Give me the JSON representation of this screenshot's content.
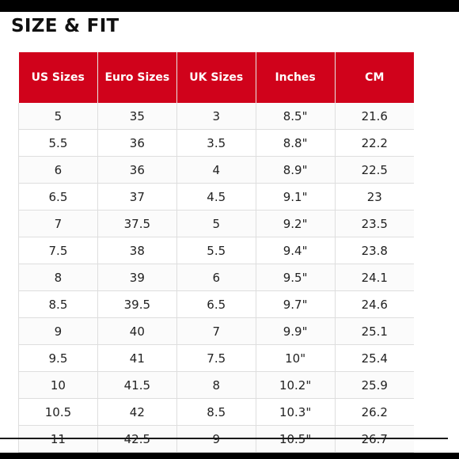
{
  "title": "SIZE & FIT",
  "table": {
    "headers": [
      "US Sizes",
      "Euro Sizes",
      "UK Sizes",
      "Inches",
      "CM"
    ],
    "rows": [
      [
        "5",
        "35",
        "3",
        "8.5\"",
        "21.6"
      ],
      [
        "5.5",
        "36",
        "3.5",
        "8.8\"",
        "22.2"
      ],
      [
        "6",
        "36",
        "4",
        "8.9\"",
        "22.5"
      ],
      [
        "6.5",
        "37",
        "4.5",
        "9.1\"",
        "23"
      ],
      [
        "7",
        "37.5",
        "5",
        "9.2\"",
        "23.5"
      ],
      [
        "7.5",
        "38",
        "5.5",
        "9.4\"",
        "23.8"
      ],
      [
        "8",
        "39",
        "6",
        "9.5\"",
        "24.1"
      ],
      [
        "8.5",
        "39.5",
        "6.5",
        "9.7\"",
        "24.6"
      ],
      [
        "9",
        "40",
        "7",
        "9.9\"",
        "25.1"
      ],
      [
        "9.5",
        "41",
        "7.5",
        "10\"",
        "25.4"
      ],
      [
        "10",
        "41.5",
        "8",
        "10.2\"",
        "25.9"
      ],
      [
        "10.5",
        "42",
        "8.5",
        "10.3\"",
        "26.2"
      ],
      [
        "11",
        "42.5",
        "9",
        "10.5\"",
        "26.7"
      ]
    ]
  },
  "colors": {
    "header_bg": "#d0021b",
    "header_text": "#ffffff"
  }
}
